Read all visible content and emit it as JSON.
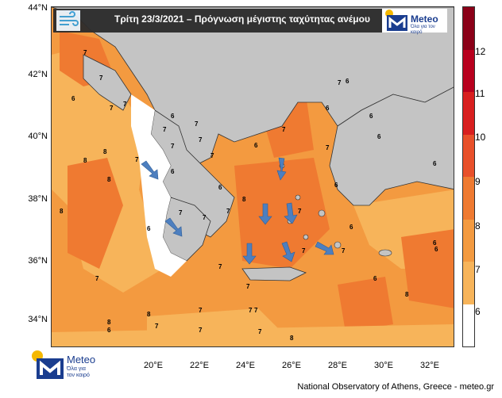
{
  "title": "Τρίτη 23/3/2021 – Πρόγνωση μέγιστης ταχύτητας ανέμου",
  "brand": {
    "name": "Meteo",
    "tagline_1": "Όλα για",
    "tagline_2": "τον καιρό",
    "color": "#1a3d8f",
    "sun_color": "#f5b800"
  },
  "credit": "National Observatory of Athens, Greece - meteo.gr",
  "lat_labels": [
    "44°N",
    "42°N",
    "40°N",
    "38°N",
    "36°N",
    "34°N"
  ],
  "lon_labels": [
    "20°E",
    "22°E",
    "24°E",
    "26°E",
    "28°E",
    "30°E",
    "32°E"
  ],
  "colorbar": {
    "labels": [
      "12",
      "11",
      "10",
      "9",
      "8",
      "7",
      "6"
    ],
    "colors": [
      "#8b0018",
      "#b8001e",
      "#d81f1f",
      "#e8502a",
      "#ef7a31",
      "#f39a40",
      "#f7b45a",
      "#ffffff"
    ]
  },
  "map_colors": {
    "land": "#c4c4c4",
    "sea_low": "#ffffff",
    "sea_6": "#f7b45a",
    "sea_7": "#f39a40",
    "sea_8": "#ef7a31",
    "sea_9": "#e8502a",
    "arrow": "#4d7fbf"
  },
  "contour_labels": [
    "7",
    "6",
    "7",
    "7",
    "8",
    "7",
    "7",
    "7",
    "7",
    "6",
    "6",
    "7",
    "7",
    "7",
    "7",
    "6",
    "8",
    "8",
    "7",
    "8",
    "6",
    "7",
    "6",
    "6",
    "7",
    "6",
    "6",
    "6",
    "7",
    "6",
    "8",
    "7",
    "7",
    "6",
    "6",
    "6",
    "6",
    "7",
    "7",
    "7",
    "7",
    "6",
    "8",
    "7",
    "7",
    "8",
    "6",
    "7",
    "7",
    "7",
    "8",
    "7",
    "8",
    "7"
  ]
}
